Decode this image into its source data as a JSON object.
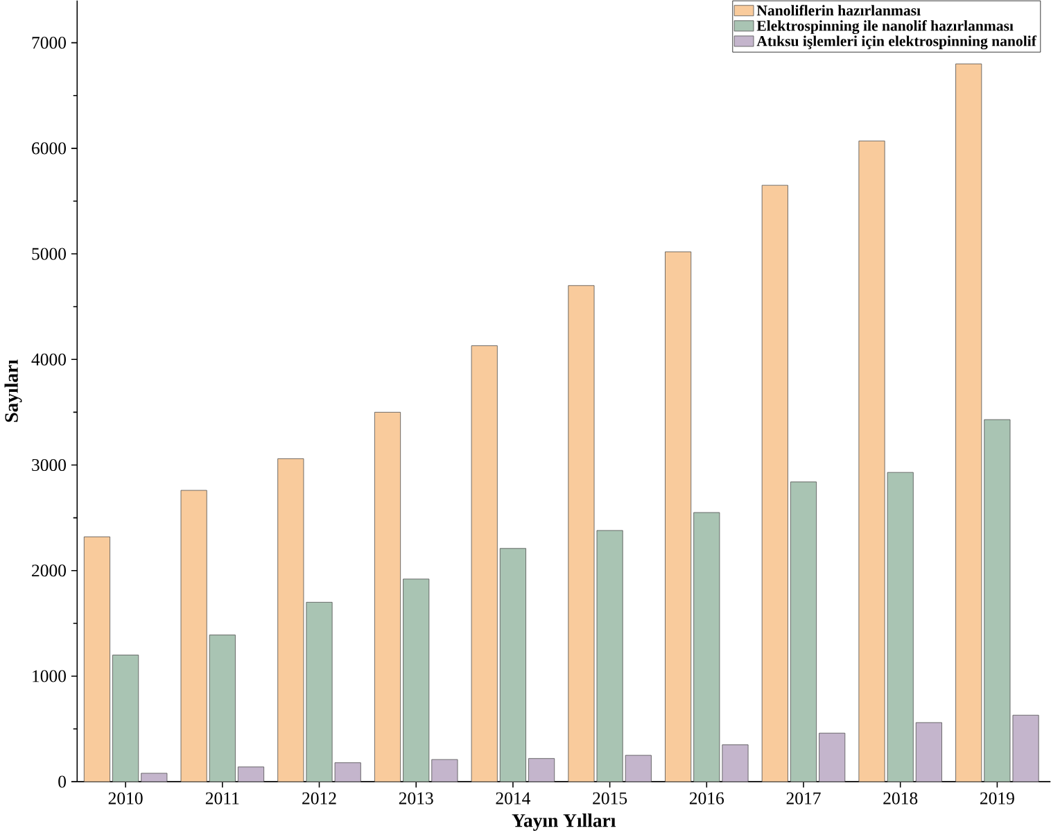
{
  "chart_data": {
    "type": "bar",
    "xlabel": "Yayın Yılları",
    "ylabel": "Sayıları",
    "categories": [
      "2010",
      "2011",
      "2012",
      "2013",
      "2014",
      "2015",
      "2016",
      "2017",
      "2018",
      "2019"
    ],
    "series": [
      {
        "name": "Nanoliflerin hazırlanması",
        "color": "#f9cb9c",
        "values": [
          2320,
          2760,
          3060,
          3500,
          4130,
          4700,
          5020,
          5650,
          6070,
          6800
        ]
      },
      {
        "name": "Elektrospinning ile nanolif hazırlanması",
        "color": "#a9c4b3",
        "values": [
          1200,
          1390,
          1700,
          1920,
          2210,
          2380,
          2550,
          2840,
          2930,
          3430
        ]
      },
      {
        "name": "Atıksu işlemleri için elektrospinning nanolif",
        "color": "#c4b5cc",
        "values": [
          80,
          140,
          180,
          210,
          220,
          250,
          350,
          460,
          560,
          630
        ]
      }
    ],
    "ylim": [
      0,
      7400
    ],
    "yticks": [
      0,
      1000,
      2000,
      3000,
      4000,
      5000,
      6000,
      7000
    ],
    "legend": "top right",
    "grid": false
  }
}
